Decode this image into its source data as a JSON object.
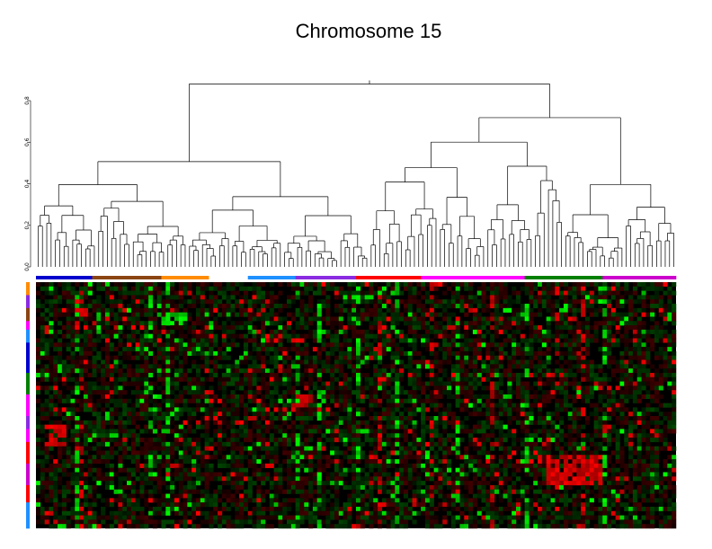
{
  "chart_data": {
    "type": "heatmap",
    "title": "Chromosome 15",
    "dendrogram": {
      "ylim": [
        0,
        0.8
      ],
      "yticks": [
        "0.0",
        "0.2",
        "0.4",
        "0.6",
        "0.8"
      ],
      "leaf_count": 148,
      "root_height": 0.88
    },
    "heatmap": {
      "columns": 148,
      "rows": 57,
      "colorscale": [
        "#00ff00",
        "#000000",
        "#ff0000"
      ],
      "background": "#000000"
    },
    "column_groups": [
      {
        "color": "#0000cd",
        "count": 13
      },
      {
        "color": "#8b4513",
        "count": 16
      },
      {
        "color": "#ff8c00",
        "count": 11
      },
      {
        "color": "#ffffff",
        "count": 9
      },
      {
        "color": "#1e90ff",
        "count": 11
      },
      {
        "color": "#8a2be2",
        "count": 14
      },
      {
        "color": "#ff0000",
        "count": 15
      },
      {
        "color": "#ff00ff",
        "count": 24
      },
      {
        "color": "#008000",
        "count": 18
      },
      {
        "color": "#cc00cc",
        "count": 17
      }
    ],
    "row_groups": [
      {
        "color": "#ff8c00",
        "count": 3
      },
      {
        "color": "#8a2be2",
        "count": 3
      },
      {
        "color": "#8b4513",
        "count": 3
      },
      {
        "color": "#ff00ff",
        "count": 2
      },
      {
        "color": "#1e90ff",
        "count": 3
      },
      {
        "color": "#0000cd",
        "count": 7
      },
      {
        "color": "#008000",
        "count": 5
      },
      {
        "color": "#ff00ff",
        "count": 5
      },
      {
        "color": "#8a2be2",
        "count": 3
      },
      {
        "color": "#ff00ff",
        "count": 3
      },
      {
        "color": "#ff0000",
        "count": 5
      },
      {
        "color": "#cc00cc",
        "count": 5
      },
      {
        "color": "#ff0000",
        "count": 4
      },
      {
        "color": "#1e90ff",
        "count": 6
      }
    ]
  }
}
